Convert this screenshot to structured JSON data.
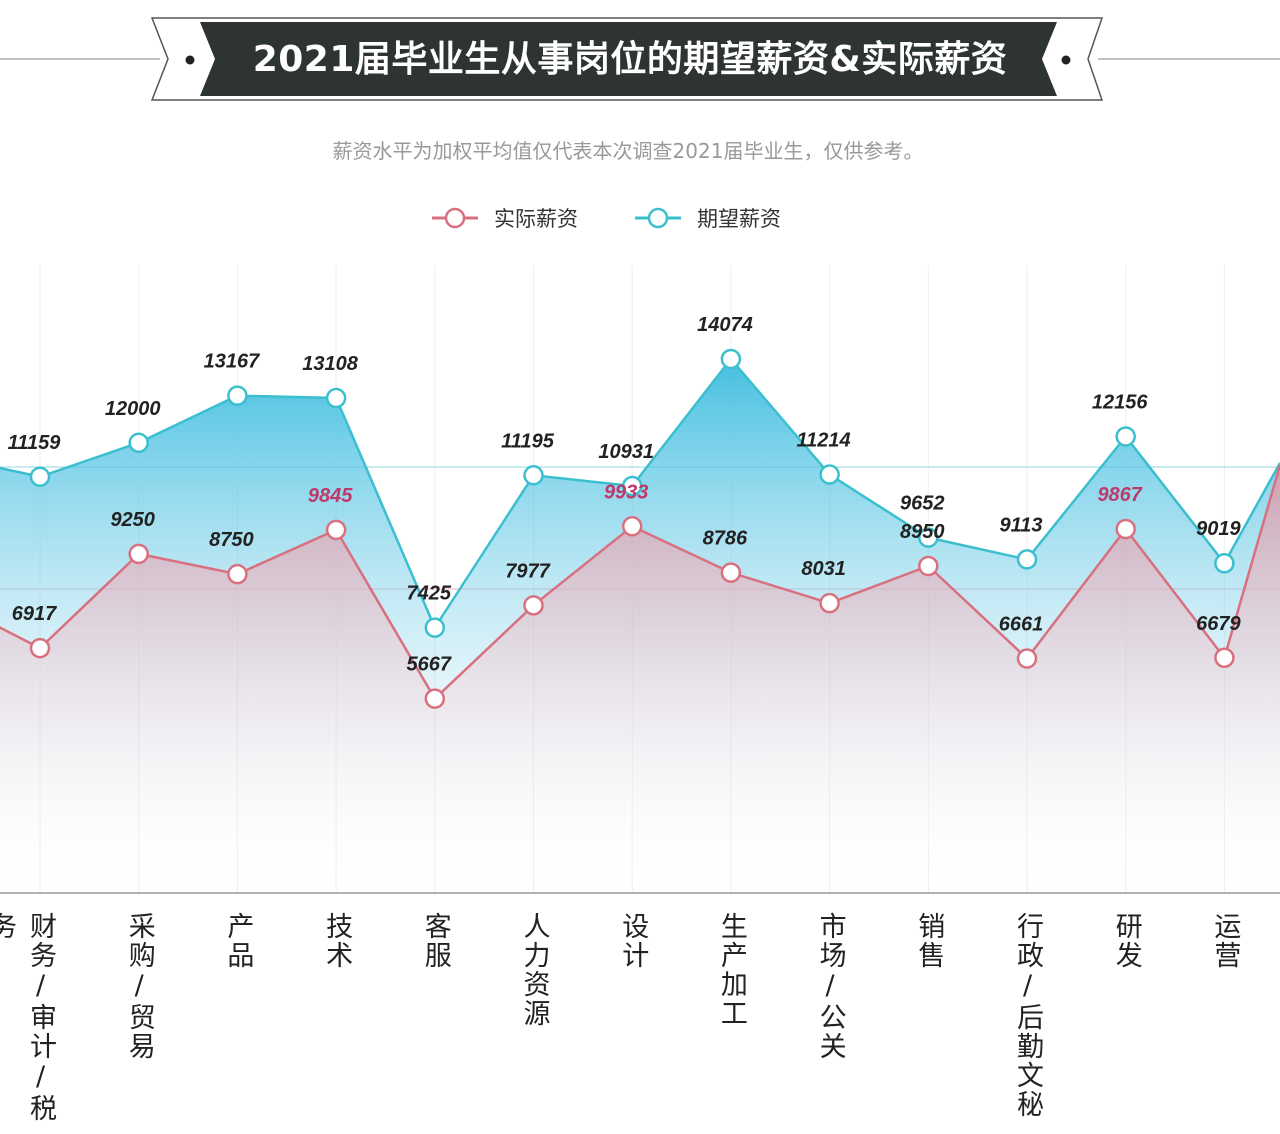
{
  "title": "2021届毕业生从事岗位的期望薪资&实际薪资",
  "subtitle": "薪资水平为加权平均值仅代表本次调查2021届毕业生，仅供参考。",
  "colors": {
    "actual": "#d9707f",
    "expected": "#3bbfcf",
    "highlight_label": "#c0396b",
    "banner": "#2e3431"
  },
  "chart_data": {
    "type": "line",
    "categories": [
      "财务/审计/税务",
      "采购/贸易",
      "产品",
      "技术",
      "客服",
      "人力资源",
      "设计",
      "生产加工",
      "市场/公关",
      "销售",
      "行政/后勤文秘",
      "研发",
      "运营"
    ],
    "series": [
      {
        "name": "实际薪资",
        "values": [
          6917,
          9250,
          8750,
          9845,
          5667,
          7977,
          9933,
          8786,
          8031,
          8950,
          6661,
          9867,
          6679
        ]
      },
      {
        "name": "期望薪资",
        "values": [
          11159,
          12000,
          13167,
          13108,
          7425,
          11195,
          10931,
          14074,
          11214,
          9652,
          9113,
          12156,
          9019
        ]
      }
    ],
    "highlighted_actual_labels": [
      3,
      6,
      11
    ],
    "legend_position": "top-center",
    "grid": "vertical"
  }
}
